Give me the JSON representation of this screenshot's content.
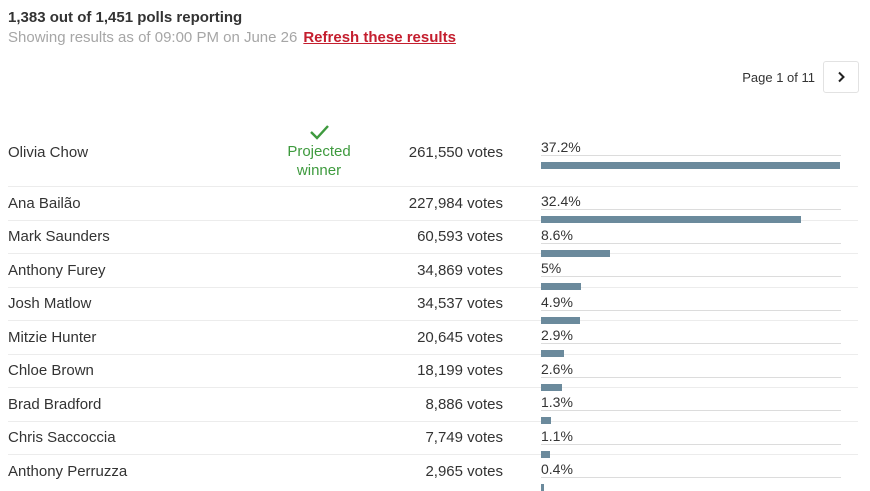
{
  "header": {
    "polls_reporting": "1,383 out of 1,451 polls reporting",
    "as_of": "Showing results as of 09:00 PM on June 26",
    "refresh_label": "Refresh these results"
  },
  "pager": {
    "label": "Page 1 of 11",
    "next_icon": "chevron-right-icon"
  },
  "winner": {
    "label_line1": "Projected",
    "label_line2": "winner",
    "icon": "checkmark-icon"
  },
  "colors": {
    "bar": "#6b8a9c",
    "winner": "#3e9a3e",
    "refresh": "#c41e2e"
  },
  "candidates": [
    {
      "name": "Olivia Chow",
      "votes": "261,550 votes",
      "percent_label": "37.2%",
      "percent": 37.2,
      "projected_winner": true
    },
    {
      "name": "Ana Bailão",
      "votes": "227,984 votes",
      "percent_label": "32.4%",
      "percent": 32.4,
      "projected_winner": false
    },
    {
      "name": "Mark Saunders",
      "votes": "60,593 votes",
      "percent_label": "8.6%",
      "percent": 8.6,
      "projected_winner": false
    },
    {
      "name": "Anthony Furey",
      "votes": "34,869 votes",
      "percent_label": "5%",
      "percent": 5.0,
      "projected_winner": false
    },
    {
      "name": "Josh Matlow",
      "votes": "34,537 votes",
      "percent_label": "4.9%",
      "percent": 4.9,
      "projected_winner": false
    },
    {
      "name": "Mitzie Hunter",
      "votes": "20,645 votes",
      "percent_label": "2.9%",
      "percent": 2.9,
      "projected_winner": false
    },
    {
      "name": "Chloe Brown",
      "votes": "18,199 votes",
      "percent_label": "2.6%",
      "percent": 2.6,
      "projected_winner": false
    },
    {
      "name": "Brad Bradford",
      "votes": "8,886 votes",
      "percent_label": "1.3%",
      "percent": 1.3,
      "projected_winner": false
    },
    {
      "name": "Chris Saccoccia",
      "votes": "7,749 votes",
      "percent_label": "1.1%",
      "percent": 1.1,
      "projected_winner": false
    },
    {
      "name": "Anthony Perruzza",
      "votes": "2,965 votes",
      "percent_label": "0.4%",
      "percent": 0.4,
      "projected_winner": false
    }
  ]
}
